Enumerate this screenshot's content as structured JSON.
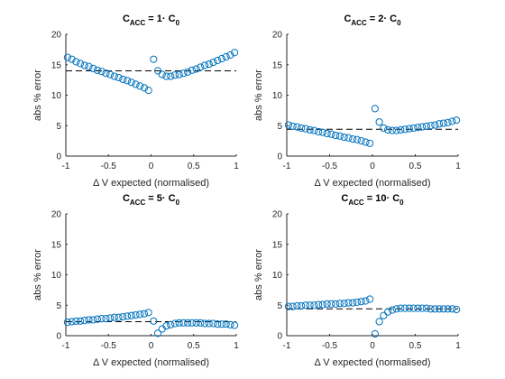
{
  "style": {
    "marker_color": "#0072BD",
    "reference_color": "#000000",
    "axis_color": "#262626"
  },
  "chart_data": [
    {
      "type": "scatter",
      "title": {
        "main": "C",
        "sub": "ACC",
        "mid": " = 1· C",
        "sub2": "0"
      },
      "xlabel": "Δ V expected (normalised)",
      "ylabel": "abs % error",
      "xlim": [
        -1,
        1
      ],
      "ylim": [
        0,
        20
      ],
      "xticks": [
        -1,
        -0.5,
        0,
        0.5,
        1
      ],
      "xtick_labels": [
        "-1",
        "-0.5",
        "0",
        "0.5",
        "1"
      ],
      "yticks": [
        0,
        5,
        10,
        15,
        20
      ],
      "ytick_labels": [
        "0",
        "5",
        "10",
        "15",
        "20"
      ],
      "reference_line": {
        "style": "dashed",
        "y": 14
      },
      "series": [
        {
          "marker": "open-circle",
          "x": [
            -0.98,
            -0.93,
            -0.88,
            -0.83,
            -0.78,
            -0.73,
            -0.68,
            -0.63,
            -0.58,
            -0.53,
            -0.48,
            -0.43,
            -0.38,
            -0.33,
            -0.28,
            -0.23,
            -0.18,
            -0.13,
            -0.08,
            -0.03,
            0.03,
            0.08,
            0.13,
            0.18,
            0.23,
            0.28,
            0.33,
            0.38,
            0.43,
            0.48,
            0.53,
            0.58,
            0.63,
            0.68,
            0.73,
            0.78,
            0.83,
            0.88,
            0.93,
            0.98
          ],
          "y": [
            16.2,
            15.9,
            15.5,
            15.2,
            14.9,
            14.7,
            14.4,
            14.1,
            13.9,
            13.6,
            13.4,
            13.1,
            12.9,
            12.6,
            12.4,
            12.1,
            11.8,
            11.5,
            11.2,
            10.8,
            15.9,
            14.0,
            13.4,
            13.1,
            13.1,
            13.3,
            13.4,
            13.6,
            13.8,
            14.1,
            14.3,
            14.6,
            14.9,
            15.1,
            15.4,
            15.7,
            16.0,
            16.3,
            16.6,
            17.0
          ]
        }
      ]
    },
    {
      "type": "scatter",
      "title": {
        "main": "C",
        "sub": "ACC",
        "mid": " = 2· C",
        "sub2": "0"
      },
      "xlabel": "Δ V expected (normalised)",
      "ylabel": "abs % error",
      "xlim": [
        -1,
        1
      ],
      "ylim": [
        0,
        20
      ],
      "xticks": [
        -1,
        -0.5,
        0,
        0.5,
        1
      ],
      "xtick_labels": [
        "-1",
        "-0.5",
        "0",
        "0.5",
        "1"
      ],
      "yticks": [
        0,
        5,
        10,
        15,
        20
      ],
      "ytick_labels": [
        "0",
        "5",
        "10",
        "15",
        "20"
      ],
      "reference_line": {
        "style": "dashed",
        "y": 4.4
      },
      "series": [
        {
          "marker": "open-circle",
          "x": [
            -0.98,
            -0.93,
            -0.88,
            -0.83,
            -0.78,
            -0.73,
            -0.68,
            -0.63,
            -0.58,
            -0.53,
            -0.48,
            -0.43,
            -0.38,
            -0.33,
            -0.28,
            -0.23,
            -0.18,
            -0.13,
            -0.08,
            -0.03,
            0.03,
            0.08,
            0.13,
            0.18,
            0.23,
            0.28,
            0.33,
            0.38,
            0.43,
            0.48,
            0.53,
            0.58,
            0.63,
            0.68,
            0.73,
            0.78,
            0.83,
            0.88,
            0.93,
            0.98
          ],
          "y": [
            5.1,
            4.9,
            4.8,
            4.6,
            4.5,
            4.3,
            4.2,
            4.0,
            3.9,
            3.7,
            3.6,
            3.4,
            3.3,
            3.1,
            3.0,
            2.8,
            2.7,
            2.5,
            2.3,
            2.1,
            7.8,
            5.6,
            4.6,
            4.3,
            4.2,
            4.2,
            4.3,
            4.4,
            4.5,
            4.6,
            4.7,
            4.8,
            4.9,
            5.0,
            5.1,
            5.3,
            5.4,
            5.5,
            5.7,
            5.9
          ]
        }
      ]
    },
    {
      "type": "scatter",
      "title": {
        "main": "C",
        "sub": "ACC",
        "mid": " = 5· C",
        "sub2": "0"
      },
      "xlabel": "Δ V expected (normalised)",
      "ylabel": "abs % error",
      "xlim": [
        -1,
        1
      ],
      "ylim": [
        0,
        20
      ],
      "xticks": [
        -1,
        -0.5,
        0,
        0.5,
        1
      ],
      "xtick_labels": [
        "-1",
        "-0.5",
        "0",
        "0.5",
        "1"
      ],
      "yticks": [
        0,
        5,
        10,
        15,
        20
      ],
      "ytick_labels": [
        "0",
        "5",
        "10",
        "15",
        "20"
      ],
      "reference_line": {
        "style": "dashed",
        "y": 2.3
      },
      "series": [
        {
          "marker": "open-circle",
          "x": [
            -0.98,
            -0.93,
            -0.88,
            -0.83,
            -0.78,
            -0.73,
            -0.68,
            -0.63,
            -0.58,
            -0.53,
            -0.48,
            -0.43,
            -0.38,
            -0.33,
            -0.28,
            -0.23,
            -0.18,
            -0.13,
            -0.08,
            -0.03,
            0.03,
            0.08,
            0.13,
            0.18,
            0.23,
            0.28,
            0.33,
            0.38,
            0.43,
            0.48,
            0.53,
            0.58,
            0.63,
            0.68,
            0.73,
            0.78,
            0.83,
            0.88,
            0.93,
            0.98
          ],
          "y": [
            2.2,
            2.3,
            2.4,
            2.4,
            2.5,
            2.6,
            2.6,
            2.7,
            2.8,
            2.8,
            2.9,
            3.0,
            3.0,
            3.1,
            3.2,
            3.3,
            3.4,
            3.5,
            3.6,
            3.8,
            2.4,
            0.4,
            1.1,
            1.6,
            1.8,
            2.0,
            2.1,
            2.1,
            2.1,
            2.1,
            2.1,
            2.1,
            2.0,
            2.0,
            2.0,
            1.9,
            1.9,
            1.9,
            1.8,
            1.7
          ]
        }
      ]
    },
    {
      "type": "scatter",
      "title": {
        "main": "C",
        "sub": "ACC",
        "mid": " = 10· C",
        "sub2": "0"
      },
      "xlabel": "Δ V expected (normalised)",
      "ylabel": "abs % error",
      "xlim": [
        -1,
        1
      ],
      "ylim": [
        0,
        20
      ],
      "xticks": [
        -1,
        -0.5,
        0,
        0.5,
        1
      ],
      "xtick_labels": [
        "-1",
        "-0.5",
        "0",
        "0.5",
        "1"
      ],
      "yticks": [
        0,
        5,
        10,
        15,
        20
      ],
      "ytick_labels": [
        "0",
        "5",
        "10",
        "15",
        "20"
      ],
      "reference_line": {
        "style": "dashed",
        "y": 4.4
      },
      "series": [
        {
          "marker": "open-circle",
          "x": [
            -0.98,
            -0.93,
            -0.88,
            -0.83,
            -0.78,
            -0.73,
            -0.68,
            -0.63,
            -0.58,
            -0.53,
            -0.48,
            -0.43,
            -0.38,
            -0.33,
            -0.28,
            -0.23,
            -0.18,
            -0.13,
            -0.08,
            -0.03,
            0.03,
            0.08,
            0.13,
            0.18,
            0.23,
            0.28,
            0.33,
            0.38,
            0.43,
            0.48,
            0.53,
            0.58,
            0.63,
            0.68,
            0.73,
            0.78,
            0.83,
            0.88,
            0.93,
            0.98
          ],
          "y": [
            4.8,
            4.8,
            4.9,
            4.9,
            5.0,
            5.0,
            5.0,
            5.1,
            5.1,
            5.2,
            5.2,
            5.2,
            5.3,
            5.3,
            5.4,
            5.4,
            5.5,
            5.6,
            5.7,
            6.0,
            0.3,
            2.3,
            3.3,
            3.9,
            4.2,
            4.4,
            4.5,
            4.5,
            4.5,
            4.5,
            4.5,
            4.5,
            4.5,
            4.4,
            4.4,
            4.4,
            4.4,
            4.4,
            4.4,
            4.3
          ]
        }
      ]
    }
  ]
}
